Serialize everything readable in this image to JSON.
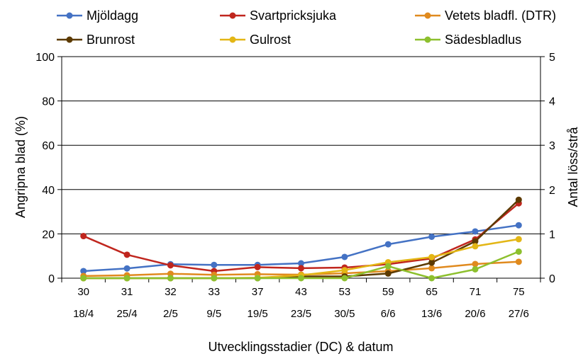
{
  "chart_data": {
    "type": "line",
    "title": "",
    "xlabel": "Utvecklingsstadier (DC) & datum",
    "ylabel_left": "Angripna blad (%)",
    "ylabel_right": "Antal löss/strå",
    "categories": [
      "30",
      "31",
      "32",
      "33",
      "37",
      "43",
      "53",
      "59",
      "65",
      "71",
      "75"
    ],
    "dates": [
      "18/4",
      "25/4",
      "2/5",
      "9/5",
      "19/5",
      "23/5",
      "30/5",
      "6/6",
      "13/6",
      "20/6",
      "27/6"
    ],
    "ylim_left": [
      0,
      100
    ],
    "yticks_left": [
      "0",
      "20",
      "40",
      "60",
      "80",
      "100"
    ],
    "ylim_right": [
      0,
      5
    ],
    "yticks_right": [
      "0",
      "1",
      "2",
      "3",
      "4",
      "5"
    ],
    "grid": true,
    "legend_position": "top",
    "series": [
      {
        "name": "Mjöldagg",
        "color": "#4472C4",
        "axis": "left",
        "values": [
          3.2,
          4.4,
          6.3,
          6.0,
          6.0,
          6.7,
          9.6,
          15.3,
          18.7,
          21.1,
          23.9
        ]
      },
      {
        "name": "Svartpricksjuka",
        "color": "#C0261E",
        "axis": "left",
        "values": [
          19.0,
          10.6,
          5.8,
          3.2,
          5.0,
          4.5,
          4.8,
          6.3,
          8.9,
          17.5,
          33.8
        ]
      },
      {
        "name": "Vetets bladfl. (DTR)",
        "color": "#E08A1E",
        "axis": "left",
        "values": [
          1.0,
          1.3,
          2.0,
          1.5,
          1.8,
          1.6,
          2.2,
          3.2,
          4.5,
          6.4,
          7.4
        ]
      },
      {
        "name": "Brunrost",
        "color": "#5C3A00",
        "axis": "left",
        "values": [
          0.0,
          0.0,
          0.0,
          0.0,
          0.0,
          0.8,
          0.8,
          2.1,
          7.0,
          16.6,
          35.4
        ]
      },
      {
        "name": "Gulrost",
        "color": "#E3B615",
        "axis": "left",
        "values": [
          0.0,
          0.0,
          0.0,
          0.0,
          0.2,
          1.3,
          3.6,
          7.2,
          9.5,
          14.4,
          17.6
        ]
      },
      {
        "name": "Sädesbladlus",
        "color": "#8DC02E",
        "axis": "right",
        "values": [
          0.0,
          0.0,
          0.0,
          0.0,
          0.0,
          0.0,
          0.0,
          0.27,
          0.0,
          0.2,
          0.6
        ]
      }
    ]
  }
}
